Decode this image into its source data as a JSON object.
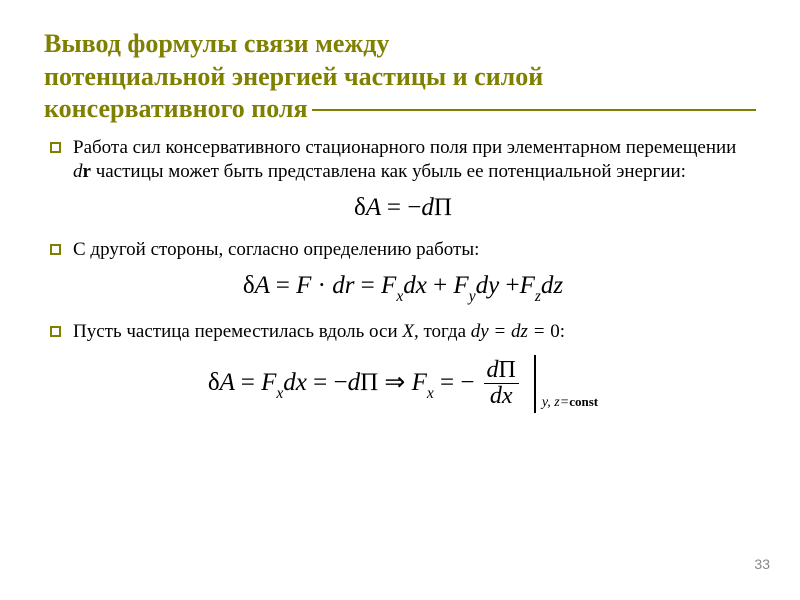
{
  "title": {
    "line1": "Вывод формулы связи между",
    "line2": "потенциальной энергией частицы и силой",
    "line3": "консервативного поля",
    "color": "#808000",
    "fontsize": 26
  },
  "bullet_color": "#808000",
  "text_color": "#000000",
  "body_fontsize": 19,
  "formula_fontsize": 25,
  "items": [
    {
      "text_parts": [
        "Работа сил консервативного стационарного поля при элементарном перемещении ",
        "d",
        "r",
        " частицы может быть представлена как убыль ее потенциальной энергии:"
      ]
    },
    {
      "text_parts": [
        "С другой стороны, согласно определению работы:"
      ]
    },
    {
      "text_parts": [
        "Пусть частица переместилась вдоль оси ",
        "X",
        ", тогда ",
        "dy = dz = ",
        "0:"
      ]
    }
  ],
  "formulas": {
    "f1": "δA = −dΠ",
    "f2": {
      "prefix": "δA = F · dr = F",
      "sub1": "x",
      "mid1": "dx + F",
      "sub2": "y",
      "mid2": "dy + F",
      "sub3": "z",
      "suffix": "dz"
    },
    "f3": {
      "left_prefix": "δA = F",
      "left_sub1": "x",
      "left_mid": "dx = −dΠ ⇒ F",
      "left_sub2": "x",
      "left_suffix": " = −",
      "frac_num": "dΠ",
      "frac_den": "dx",
      "cond_vars": "y, z=",
      "cond_const": "const"
    }
  },
  "page_number": "33"
}
